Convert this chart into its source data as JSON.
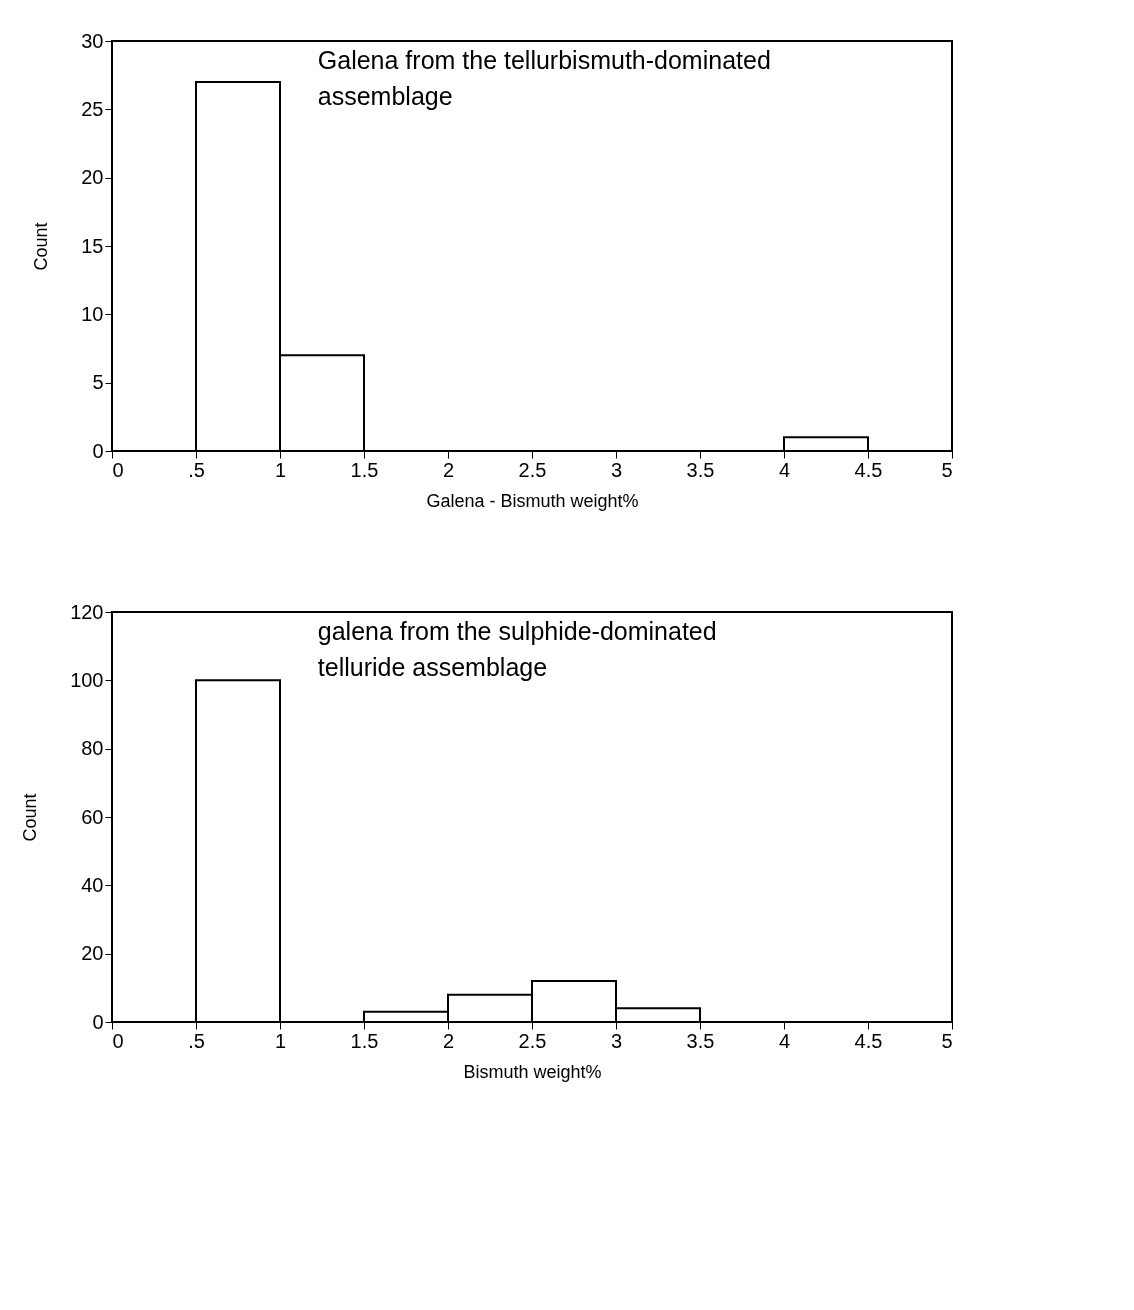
{
  "chart_data": [
    {
      "type": "histogram",
      "annotations": [
        "Galena from the tellurbismuth-dominated",
        "assemblage"
      ],
      "xlabel": "Galena -  Bismuth weight%",
      "ylabel": "Count",
      "bins": [
        0,
        0.5,
        1,
        1.5,
        2,
        2.5,
        3,
        3.5,
        4,
        4.5,
        5
      ],
      "values": [
        0,
        27,
        7,
        0,
        0,
        0,
        0,
        0,
        1,
        0
      ],
      "color": "#ffffff",
      "xlim": [
        0,
        5
      ],
      "xticks": [
        0,
        {
          "value": 0.5,
          "label": ".5"
        },
        1,
        {
          "value": 1.5,
          "label": "1.5"
        },
        2,
        {
          "value": 2.5,
          "label": "2.5"
        },
        3,
        {
          "value": 3.5,
          "label": "3.5"
        },
        4,
        {
          "value": 4.5,
          "label": "4.5"
        },
        5
      ],
      "ylim": [
        0,
        30
      ],
      "yticks": [
        0,
        5,
        10,
        15,
        20,
        25,
        30
      ],
      "grid": false
    },
    {
      "type": "histogram",
      "annotations": [
        "galena from the sulphide-dominated",
        "telluride assemblage"
      ],
      "xlabel": "Bismuth weight%",
      "ylabel": "Count",
      "bins": [
        0,
        0.5,
        1,
        1.5,
        2,
        2.5,
        3,
        3.5,
        4,
        4.5,
        5
      ],
      "values": [
        0,
        100,
        0,
        3,
        8,
        12,
        4,
        0,
        0,
        0
      ],
      "color": "#ffffff",
      "xlim": [
        0,
        5
      ],
      "xticks": [
        0,
        {
          "value": 0.5,
          "label": ".5"
        },
        1,
        {
          "value": 1.5,
          "label": "1.5"
        },
        2,
        {
          "value": 2.5,
          "label": "2.5"
        },
        3,
        {
          "value": 3.5,
          "label": "3.5"
        },
        4,
        {
          "value": 4.5,
          "label": "4.5"
        },
        5
      ],
      "ylim": [
        0,
        120
      ],
      "yticks": [
        0,
        20,
        40,
        60,
        80,
        100,
        120
      ],
      "grid": false
    }
  ]
}
